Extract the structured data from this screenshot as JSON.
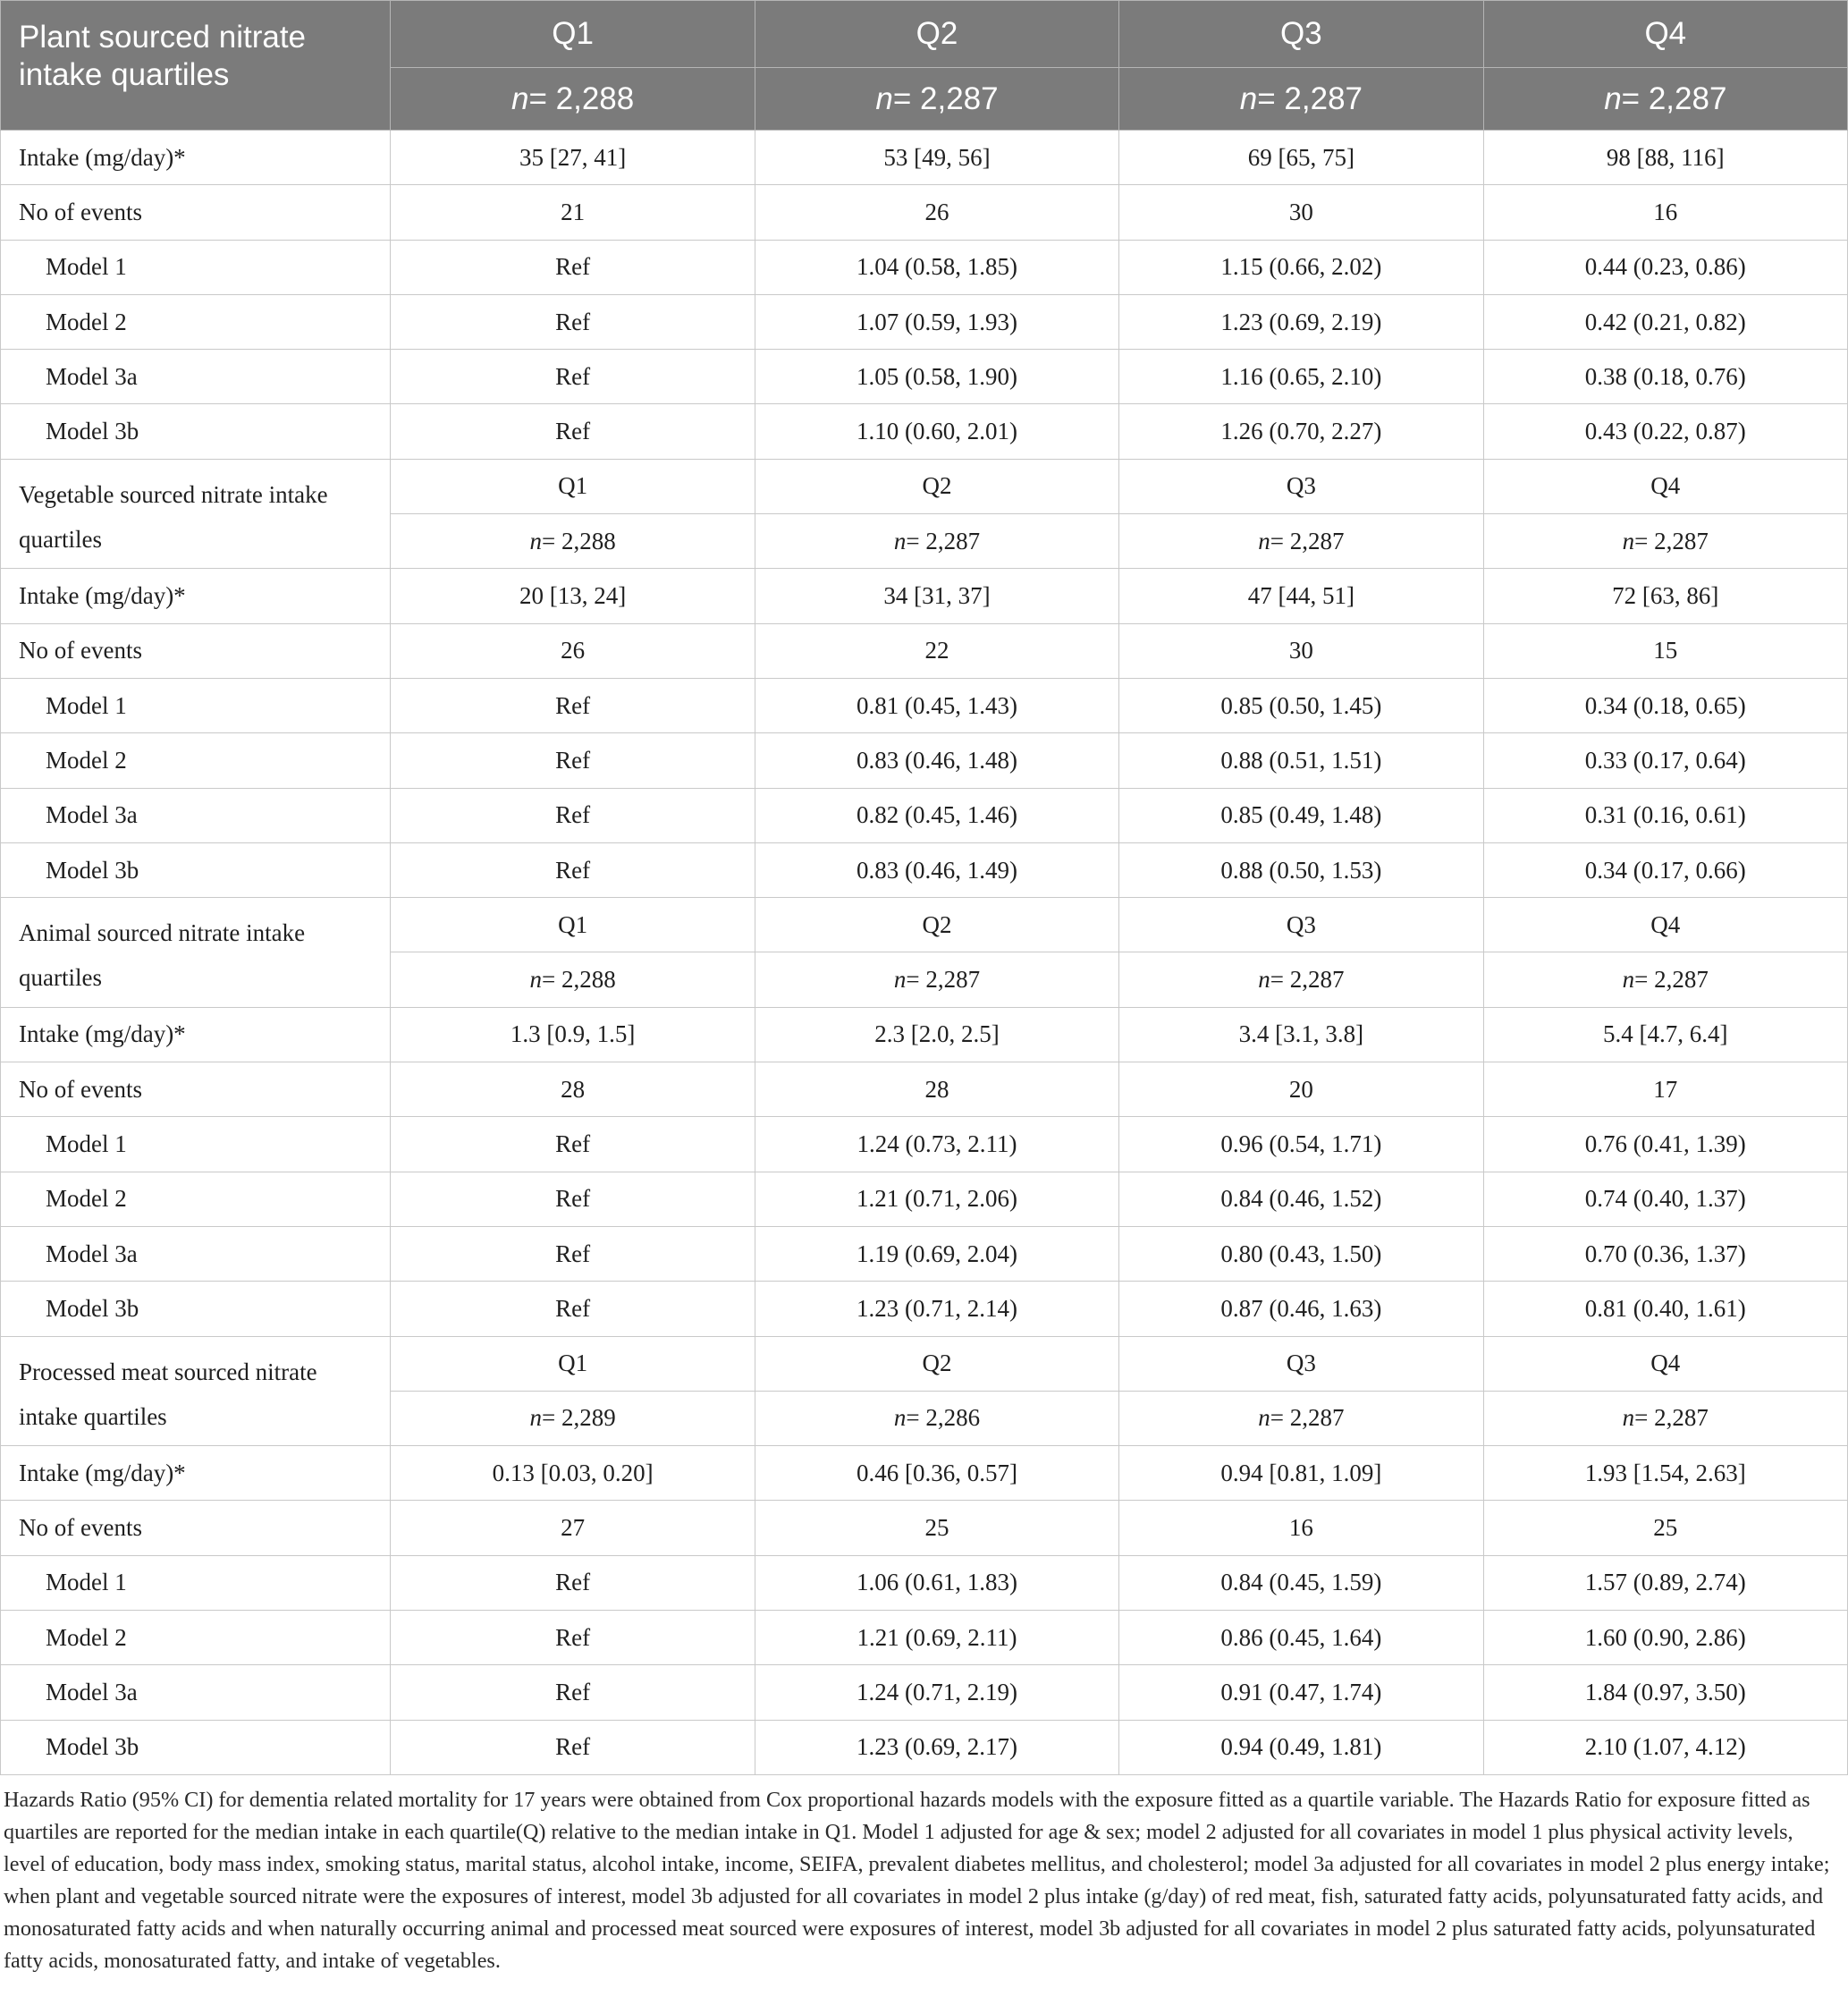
{
  "header": {
    "title": "Plant sourced nitrate intake quartiles",
    "quartiles": [
      "Q1",
      "Q2",
      "Q3",
      "Q4"
    ],
    "n_prefix": "n",
    "n_values": [
      "= 2,288",
      "= 2,287",
      "= 2,287",
      "= 2,287"
    ]
  },
  "sections": [
    {
      "title": "Plant sourced nitrate intake quartiles",
      "rows": [
        {
          "label": "Intake (mg/day)*",
          "cells": [
            "35 [27, 41]",
            "53 [49, 56]",
            "69 [65, 75]",
            "98 [88, 116]"
          ]
        },
        {
          "label": "No of events",
          "cells": [
            "21",
            "26",
            "30",
            "16"
          ]
        },
        {
          "label": "Model 1",
          "cells": [
            "Ref",
            "1.04 (0.58, 1.85)",
            "1.15 (0.66, 2.02)",
            "0.44 (0.23, 0.86)"
          ]
        },
        {
          "label": "Model 2",
          "cells": [
            "Ref",
            "1.07 (0.59, 1.93)",
            "1.23 (0.69, 2.19)",
            "0.42 (0.21, 0.82)"
          ]
        },
        {
          "label": "Model 3a",
          "cells": [
            "Ref",
            "1.05 (0.58, 1.90)",
            "1.16 (0.65, 2.10)",
            "0.38 (0.18, 0.76)"
          ]
        },
        {
          "label": "Model 3b",
          "cells": [
            "Ref",
            "1.10 (0.60, 2.01)",
            "1.26 (0.70, 2.27)",
            "0.43 (0.22, 0.87)"
          ]
        }
      ]
    },
    {
      "title": "Vegetable sourced nitrate intake quartiles",
      "quartiles": [
        "Q1",
        "Q2",
        "Q3",
        "Q4"
      ],
      "n_prefix": "n",
      "n_values": [
        "= 2,288",
        "= 2,287",
        "= 2,287",
        "= 2,287"
      ],
      "rows": [
        {
          "label": "Intake (mg/day)*",
          "cells": [
            "20 [13, 24]",
            "34 [31, 37]",
            "47 [44, 51]",
            "72 [63, 86]"
          ]
        },
        {
          "label": "No of events",
          "cells": [
            "26",
            "22",
            "30",
            "15"
          ]
        },
        {
          "label": "Model 1",
          "cells": [
            "Ref",
            "0.81 (0.45, 1.43)",
            "0.85 (0.50, 1.45)",
            "0.34 (0.18, 0.65)"
          ]
        },
        {
          "label": "Model 2",
          "cells": [
            "Ref",
            "0.83 (0.46, 1.48)",
            "0.88 (0.51, 1.51)",
            "0.33 (0.17, 0.64)"
          ]
        },
        {
          "label": "Model 3a",
          "cells": [
            "Ref",
            "0.82 (0.45, 1.46)",
            "0.85 (0.49, 1.48)",
            "0.31 (0.16, 0.61)"
          ]
        },
        {
          "label": "Model 3b",
          "cells": [
            "Ref",
            "0.83 (0.46, 1.49)",
            "0.88 (0.50, 1.53)",
            "0.34 (0.17, 0.66)"
          ]
        }
      ]
    },
    {
      "title": "Animal sourced nitrate intake quartiles",
      "quartiles": [
        "Q1",
        "Q2",
        "Q3",
        "Q4"
      ],
      "n_prefix": "n",
      "n_values": [
        "= 2,288",
        "= 2,287",
        "= 2,287",
        "= 2,287"
      ],
      "rows": [
        {
          "label": "Intake (mg/day)*",
          "cells": [
            "1.3 [0.9, 1.5]",
            "2.3 [2.0, 2.5]",
            "3.4 [3.1, 3.8]",
            "5.4 [4.7, 6.4]"
          ]
        },
        {
          "label": "No of events",
          "cells": [
            "28",
            "28",
            "20",
            "17"
          ]
        },
        {
          "label": "Model 1",
          "cells": [
            "Ref",
            "1.24 (0.73, 2.11)",
            "0.96 (0.54, 1.71)",
            "0.76 (0.41, 1.39)"
          ]
        },
        {
          "label": "Model 2",
          "cells": [
            "Ref",
            "1.21 (0.71, 2.06)",
            "0.84 (0.46, 1.52)",
            "0.74 (0.40, 1.37)"
          ]
        },
        {
          "label": "Model 3a",
          "cells": [
            "Ref",
            "1.19 (0.69, 2.04)",
            "0.80 (0.43, 1.50)",
            "0.70 (0.36, 1.37)"
          ]
        },
        {
          "label": "Model 3b",
          "cells": [
            "Ref",
            "1.23 (0.71, 2.14)",
            "0.87 (0.46, 1.63)",
            "0.81 (0.40, 1.61)"
          ]
        }
      ]
    },
    {
      "title": "Processed meat sourced nitrate intake quartiles",
      "quartiles": [
        "Q1",
        "Q2",
        "Q3",
        "Q4"
      ],
      "n_prefix": "n",
      "n_values": [
        "= 2,289",
        "= 2,286",
        "= 2,287",
        "= 2,287"
      ],
      "rows": [
        {
          "label": "Intake (mg/day)*",
          "cells": [
            "0.13 [0.03, 0.20]",
            "0.46 [0.36, 0.57]",
            "0.94 [0.81, 1.09]",
            "1.93 [1.54, 2.63]"
          ]
        },
        {
          "label": "No of events",
          "cells": [
            "27",
            "25",
            "16",
            "25"
          ]
        },
        {
          "label": "Model 1",
          "cells": [
            "Ref",
            "1.06 (0.61, 1.83)",
            "0.84 (0.45, 1.59)",
            "1.57 (0.89, 2.74)"
          ]
        },
        {
          "label": "Model 2",
          "cells": [
            "Ref",
            "1.21 (0.69, 2.11)",
            "0.86 (0.45, 1.64)",
            "1.60 (0.90, 2.86)"
          ]
        },
        {
          "label": "Model 3a",
          "cells": [
            "Ref",
            "1.24 (0.71, 2.19)",
            "0.91 (0.47, 1.74)",
            "1.84 (0.97, 3.50)"
          ]
        },
        {
          "label": "Model 3b",
          "cells": [
            "Ref",
            "1.23 (0.69, 2.17)",
            "0.94 (0.49, 1.81)",
            "2.10 (1.07, 4.12)"
          ]
        }
      ]
    }
  ],
  "footnote": "Hazards Ratio (95% CI) for dementia related mortality for 17 years were obtained from Cox proportional hazards models with the exposure fitted as a quartile variable. The Hazards Ratio for exposure fitted as quartiles are reported for the median intake in each quartile(Q) relative to the median intake in Q1. Model 1 adjusted for age & sex; model 2 adjusted for all covariates in model 1 plus physical activity levels, level of education, body mass index, smoking status, marital status, alcohol intake, income, SEIFA, prevalent diabetes mellitus, and cholesterol; model 3a adjusted for all covariates in model 2 plus energy intake; when plant and vegetable sourced nitrate were the exposures of interest, model 3b adjusted for all covariates in model 2 plus intake (g/day) of red meat, fish, saturated fatty acids, polyunsaturated fatty acids, and monosaturated fatty acids and when naturally occurring animal and processed meat sourced were exposures of interest, model 3b adjusted for all covariates in model 2 plus saturated fatty acids, polyunsaturated fatty acids, monosaturated fatty, and intake of vegetables."
}
